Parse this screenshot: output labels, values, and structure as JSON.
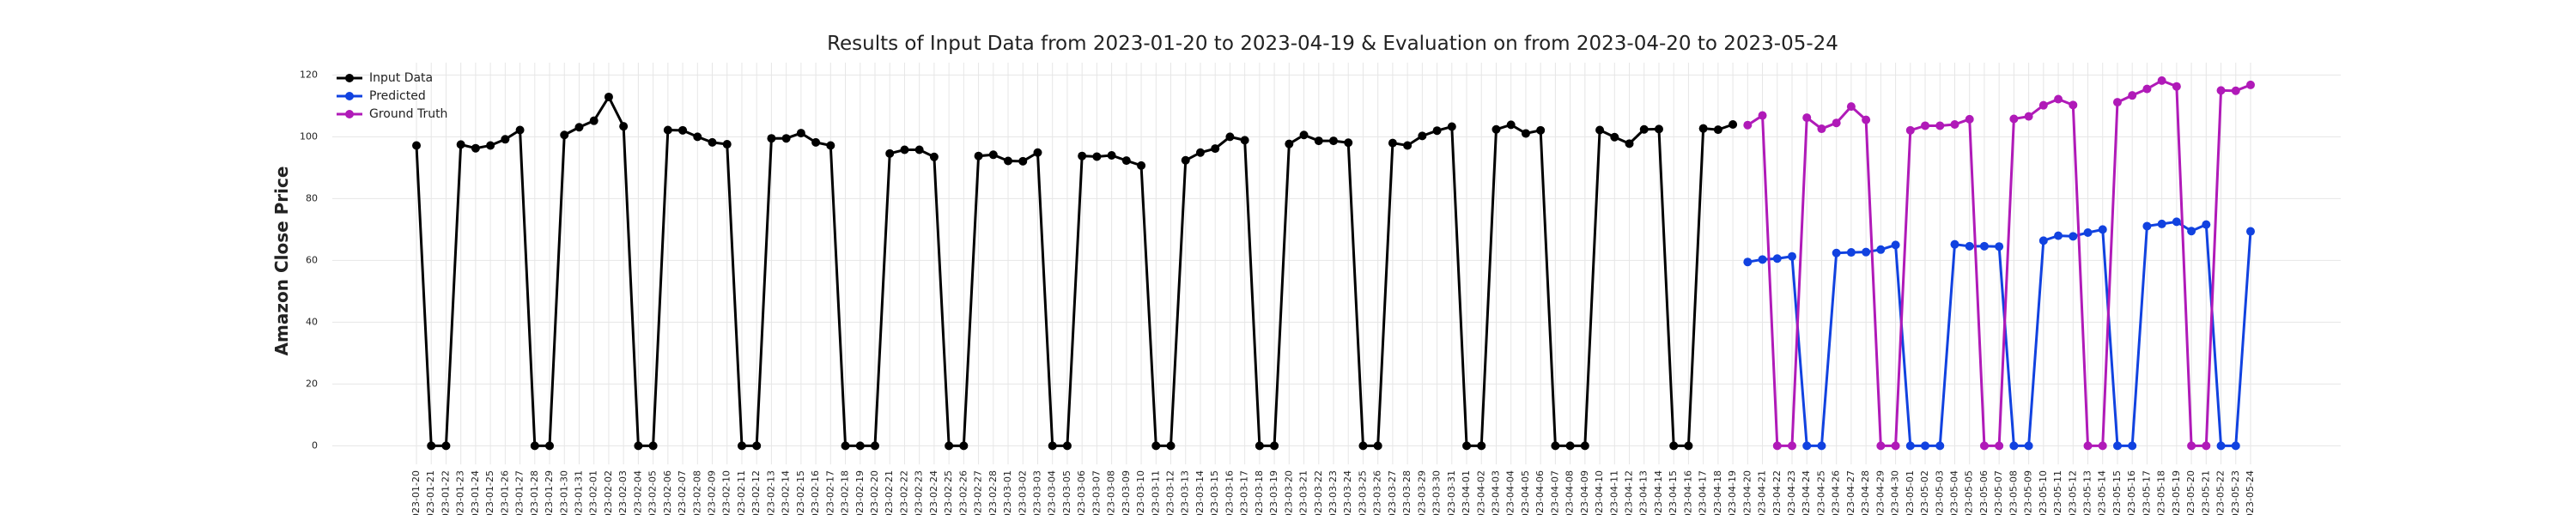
{
  "chart_data": {
    "type": "line",
    "title": "Results of Input Data from 2023-01-20 to 2023-04-19 & Evaluation on from 2023-04-20 to 2023-05-24",
    "ylabel": "Amazon Close Price",
    "categories": [
      "2023-01-20",
      "2023-01-21",
      "2023-01-22",
      "2023-01-23",
      "2023-01-24",
      "2023-01-25",
      "2023-01-26",
      "2023-01-27",
      "2023-01-28",
      "2023-01-29",
      "2023-01-30",
      "2023-01-31",
      "2023-02-01",
      "2023-02-02",
      "2023-02-03",
      "2023-02-04",
      "2023-02-05",
      "2023-02-06",
      "2023-02-07",
      "2023-02-08",
      "2023-02-09",
      "2023-02-10",
      "2023-02-11",
      "2023-02-12",
      "2023-02-13",
      "2023-02-14",
      "2023-02-15",
      "2023-02-16",
      "2023-02-17",
      "2023-02-18",
      "2023-02-19",
      "2023-02-20",
      "2023-02-21",
      "2023-02-22",
      "2023-02-23",
      "2023-02-24",
      "2023-02-25",
      "2023-02-26",
      "2023-02-27",
      "2023-02-28",
      "2023-03-01",
      "2023-03-02",
      "2023-03-03",
      "2023-03-04",
      "2023-03-05",
      "2023-03-06",
      "2023-03-07",
      "2023-03-08",
      "2023-03-09",
      "2023-03-10",
      "2023-03-11",
      "2023-03-12",
      "2023-03-13",
      "2023-03-14",
      "2023-03-15",
      "2023-03-16",
      "2023-03-17",
      "2023-03-18",
      "2023-03-19",
      "2023-03-20",
      "2023-03-21",
      "2023-03-22",
      "2023-03-23",
      "2023-03-24",
      "2023-03-25",
      "2023-03-26",
      "2023-03-27",
      "2023-03-28",
      "2023-03-29",
      "2023-03-30",
      "2023-03-31",
      "2023-04-01",
      "2023-04-02",
      "2023-04-03",
      "2023-04-04",
      "2023-04-05",
      "2023-04-06",
      "2023-04-07",
      "2023-04-08",
      "2023-04-09",
      "2023-04-10",
      "2023-04-11",
      "2023-04-12",
      "2023-04-13",
      "2023-04-14",
      "2023-04-15",
      "2023-04-16",
      "2023-04-17",
      "2023-04-18",
      "2023-04-19",
      "2023-04-20",
      "2023-04-21",
      "2023-04-22",
      "2023-04-23",
      "2023-04-24",
      "2023-04-25",
      "2023-04-26",
      "2023-04-27",
      "2023-04-28",
      "2023-04-29",
      "2023-04-30",
      "2023-05-01",
      "2023-05-02",
      "2023-05-03",
      "2023-05-04",
      "2023-05-05",
      "2023-05-06",
      "2023-05-07",
      "2023-05-08",
      "2023-05-09",
      "2023-05-10",
      "2023-05-11",
      "2023-05-12",
      "2023-05-13",
      "2023-05-14",
      "2023-05-15",
      "2023-05-16",
      "2023-05-17",
      "2023-05-18",
      "2023-05-19",
      "2023-05-20",
      "2023-05-21",
      "2023-05-22",
      "2023-05-23",
      "2023-05-24"
    ],
    "series": [
      {
        "name": "Input Data",
        "color": "#000000",
        "values": [
          97.2,
          0,
          0,
          97.5,
          96.3,
          97.2,
          99.2,
          102.2,
          0,
          0,
          100.6,
          103.1,
          105.2,
          112.9,
          103.4,
          0,
          0,
          102.2,
          102.1,
          100.0,
          98.2,
          97.6,
          0,
          0,
          99.5,
          99.5,
          101.2,
          98.2,
          97.2,
          0,
          0,
          0,
          94.6,
          95.8,
          95.8,
          93.5,
          0,
          0,
          93.8,
          94.2,
          92.2,
          92.1,
          94.9,
          0,
          0,
          93.8,
          93.6,
          94.0,
          92.3,
          90.7,
          0,
          0,
          92.4,
          94.9,
          96.2,
          100.0,
          98.9,
          0,
          0,
          97.7,
          100.6,
          98.7,
          98.7,
          98.1,
          0,
          0,
          98.0,
          97.2,
          100.3,
          102.0,
          103.3,
          0,
          0,
          102.4,
          103.9,
          101.1,
          102.1,
          0,
          0,
          0,
          102.2,
          99.9,
          97.8,
          102.4,
          102.5,
          0,
          0,
          102.7,
          102.3,
          104.0,
          null,
          null,
          null,
          null,
          null,
          null,
          null,
          null,
          null,
          null,
          null,
          null,
          null,
          null,
          null,
          null,
          null,
          null,
          null,
          null,
          null,
          null,
          null,
          null,
          null,
          null,
          null,
          null,
          null,
          null,
          null,
          null,
          null,
          null,
          null
        ]
      },
      {
        "name": "Predicted",
        "color": "#1142e0",
        "values": [
          null,
          null,
          null,
          null,
          null,
          null,
          null,
          null,
          null,
          null,
          null,
          null,
          null,
          null,
          null,
          null,
          null,
          null,
          null,
          null,
          null,
          null,
          null,
          null,
          null,
          null,
          null,
          null,
          null,
          null,
          null,
          null,
          null,
          null,
          null,
          null,
          null,
          null,
          null,
          null,
          null,
          null,
          null,
          null,
          null,
          null,
          null,
          null,
          null,
          null,
          null,
          null,
          null,
          null,
          null,
          null,
          null,
          null,
          null,
          null,
          null,
          null,
          null,
          null,
          null,
          null,
          null,
          null,
          null,
          null,
          null,
          null,
          null,
          null,
          null,
          null,
          null,
          null,
          null,
          null,
          null,
          null,
          null,
          null,
          null,
          null,
          null,
          null,
          null,
          null,
          59.5,
          60.3,
          60.6,
          61.3,
          0,
          0,
          62.4,
          62.6,
          62.7,
          63.5,
          65.0,
          0,
          0,
          0,
          65.2,
          64.6,
          64.6,
          64.5,
          0,
          0,
          66.4,
          68.0,
          67.8,
          69.0,
          70.0,
          0,
          0,
          71.1,
          71.8,
          72.5,
          69.5,
          71.6,
          0,
          0,
          69.4
        ]
      },
      {
        "name": "Ground Truth",
        "color": "#b01ab8",
        "values": [
          null,
          null,
          null,
          null,
          null,
          null,
          null,
          null,
          null,
          null,
          null,
          null,
          null,
          null,
          null,
          null,
          null,
          null,
          null,
          null,
          null,
          null,
          null,
          null,
          null,
          null,
          null,
          null,
          null,
          null,
          null,
          null,
          null,
          null,
          null,
          null,
          null,
          null,
          null,
          null,
          null,
          null,
          null,
          null,
          null,
          null,
          null,
          null,
          null,
          null,
          null,
          null,
          null,
          null,
          null,
          null,
          null,
          null,
          null,
          null,
          null,
          null,
          null,
          null,
          null,
          null,
          null,
          null,
          null,
          null,
          null,
          null,
          null,
          null,
          null,
          null,
          null,
          null,
          null,
          null,
          null,
          null,
          null,
          null,
          null,
          null,
          null,
          null,
          null,
          null,
          103.8,
          106.9,
          0,
          0,
          106.2,
          102.6,
          104.5,
          109.8,
          105.5,
          0,
          0,
          102.1,
          103.6,
          103.6,
          104.0,
          105.7,
          0,
          0,
          105.8,
          106.6,
          110.2,
          112.2,
          110.3,
          0,
          0,
          111.2,
          113.4,
          115.5,
          118.2,
          116.3,
          0,
          0,
          115.0,
          114.9,
          116.8
        ]
      }
    ],
    "ylim": [
      -6,
      124
    ],
    "yticks": [
      0,
      20,
      40,
      60,
      80,
      100,
      120
    ],
    "grid": true,
    "legend": "upper left"
  }
}
